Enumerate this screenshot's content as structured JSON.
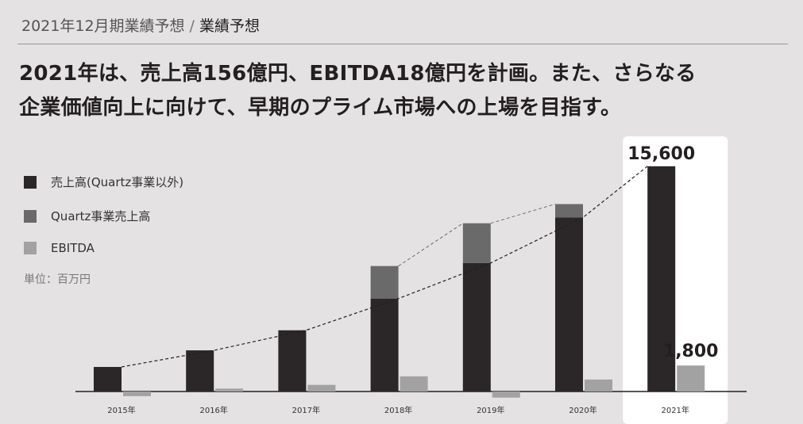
{
  "header": {
    "breadcrumb_parent": "2021年12月期業績予想",
    "separator": "/",
    "breadcrumb_current": "業績予想"
  },
  "headline": {
    "line1": "2021年は、売上高156億円、EBITDA18億円を計画。また、さらなる",
    "line2": "企業価値向上に向けて、早期のプライム市場への上場を目指す。"
  },
  "legend": {
    "items": [
      {
        "label": "売上高(Quartz事業以外)",
        "color": "#2b2627"
      },
      {
        "label": "Quartz事業売上高",
        "color": "#6b6a6a"
      },
      {
        "label": "EBITDA",
        "color": "#a3a2a2"
      }
    ]
  },
  "unit_label": "単位：百万円",
  "colors": {
    "background": "#e4e2e2",
    "highlight": "#ffffff",
    "sales_core": "#2b2627",
    "sales_quartz": "#6b6a6a",
    "ebitda": "#a3a2a2"
  },
  "chart_data": {
    "type": "bar",
    "stacked": true,
    "categories": [
      "2015年",
      "2016年",
      "2017年",
      "2018年",
      "2019年",
      "2020年",
      "2021年"
    ],
    "series": [
      {
        "name": "売上高(Quartz事業以外)",
        "values": [
          1700,
          2850,
          4240,
          6440,
          8900,
          12050,
          15600
        ]
      },
      {
        "name": "Quartz事業売上高",
        "values": [
          0,
          0,
          0,
          2250,
          2750,
          930,
          0
        ]
      },
      {
        "name": "EBITDA",
        "values": [
          -320,
          200,
          460,
          1050,
          -420,
          830,
          1800
        ]
      }
    ],
    "data_labels": [
      {
        "category": "2021年",
        "series": "売上高(Quartz事業以外)",
        "text": "15,600"
      },
      {
        "category": "2021年",
        "series": "EBITDA",
        "text": "1,800"
      }
    ],
    "highlight_category": "2021年",
    "ylim": [
      -600,
      16700
    ],
    "xlabel": "",
    "ylabel": ""
  }
}
